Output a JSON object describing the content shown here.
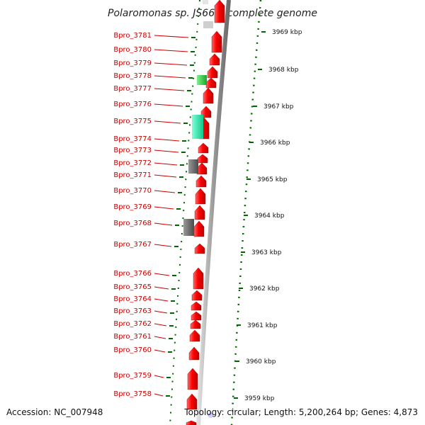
{
  "title": "Polaromonas sp. JS666, complete genome",
  "accession": "Accession: NC_007948",
  "summary": "Topology: circular; Length: 5,200,264 bp; Genes: 4,873",
  "colors": {
    "forward_gene": "#ff0000",
    "label": "#cc0000",
    "tick": "#006600",
    "backbone": "#9a9a9a",
    "gray_gene": "#6e6e6e",
    "green_gene": "#2ecc40",
    "teal_gene": "#19e6a0"
  },
  "genes": [
    {
      "label": "Bpro_3781"
    },
    {
      "label": "Bpro_3780"
    },
    {
      "label": "Bpro_3779"
    },
    {
      "label": "Bpro_3778"
    },
    {
      "label": "Bpro_3777"
    },
    {
      "label": "Bpro_3776"
    },
    {
      "label": "Bpro_3775"
    },
    {
      "label": "Bpro_3774"
    },
    {
      "label": "Bpro_3773"
    },
    {
      "label": "Bpro_3772"
    },
    {
      "label": "Bpro_3771"
    },
    {
      "label": "Bpro_3770"
    },
    {
      "label": "Bpro_3769"
    },
    {
      "label": "Bpro_3768"
    },
    {
      "label": "Bpro_3767"
    },
    {
      "label": "Bpro_3766"
    },
    {
      "label": "Bpro_3765"
    },
    {
      "label": "Bpro_3764"
    },
    {
      "label": "Bpro_3763"
    },
    {
      "label": "Bpro_3762"
    },
    {
      "label": "Bpro_3761"
    },
    {
      "label": "Bpro_3760"
    },
    {
      "label": "Bpro_3759"
    },
    {
      "label": "Bpro_3758"
    }
  ],
  "scale": [
    {
      "label": "3969 kbp"
    },
    {
      "label": "3968 kbp"
    },
    {
      "label": "3967 kbp"
    },
    {
      "label": "3966 kbp"
    },
    {
      "label": "3965 kbp"
    },
    {
      "label": "3964 kbp"
    },
    {
      "label": "3963 kbp"
    },
    {
      "label": "3962 kbp"
    },
    {
      "label": "3961 kbp"
    },
    {
      "label": "3960 kbp"
    },
    {
      "label": "3959 kbp"
    }
  ]
}
